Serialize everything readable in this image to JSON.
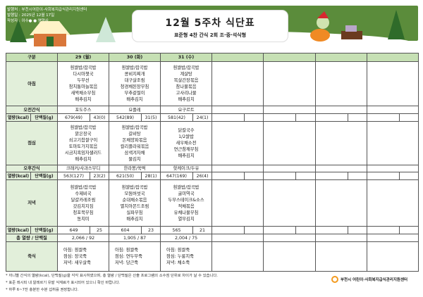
{
  "header": {
    "publisher": "발행처 : 부천시어린이·사회복지급식관리지원센터",
    "date": "발행일 : 2025년 12월 17일",
    "author": "작성자 : 이수● ● 영양사",
    "title": "12월 5주차 식단표",
    "subtitle": "표준형 4찬 간식 2회 조·중·석식형"
  },
  "table": {
    "corner": "구분",
    "days": [
      "29 (월)",
      "30 (화)",
      "31 (수)",
      "",
      "",
      "",
      ""
    ],
    "rows": {
      "breakfast": "아침",
      "am_snack": "오전간식",
      "kcal": "열량(kcal)",
      "protein": "단백질(g)",
      "lunch": "점심",
      "pm_snack": "오후간식",
      "dinner": "저녁",
      "total": "총 열량 / 단백질",
      "porridge": "죽식"
    },
    "breakfast": [
      [
        "흰쌀밥/잡곡밥",
        "다시마챗국",
        "두부선",
        "참치통마늘볶음",
        "새싹채소무침",
        "배추김치"
      ],
      [
        "흰쌀밥/잡곡밥",
        "콩비지찌개",
        "대구살조림",
        "청경채된장무침",
        "부추겉절이",
        "배추김치"
      ],
      [
        "흰쌀밥/잡곡밥",
        "계살탕",
        "목살간장볶음",
        "참나물볶음",
        "고사리나물",
        "배추김치"
      ]
    ],
    "am_snack": [
      "포도주스",
      "요플레",
      "요구르트"
    ],
    "am_nutrition": [
      [
        "679(49)",
        "43(0)"
      ],
      [
        "542(89)",
        "31(5)"
      ],
      [
        "581(42)",
        "24(1)"
      ]
    ],
    "lunch": [
      [
        "흰쌀밥/잡곡밥",
        "맑은장국",
        "쇠고기찹쌀구이",
        "토마토가지볶음",
        "시금치흑임자샐러드",
        "배추김치"
      ],
      [
        "흰쌀밥/잡곡밥",
        "갈비탕",
        "돈채양파볶음",
        "컬리플라워볶음",
        "삼색겨자채",
        "물김치"
      ],
      [
        "닭칼국수",
        "1/2쌀밥",
        "새우채소전",
        "연근참깨무침",
        "배추김치"
      ]
    ],
    "pm_snack": [
      "크래커/사과스무디",
      "한라봉/쑥떡",
      "핫케이크/두유"
    ],
    "pm_nutrition": [
      [
        "563(127)",
        "23(2)"
      ],
      [
        "621(50)",
        "28(1)"
      ],
      [
        "647(169)",
        "26(4)"
      ]
    ],
    "dinner": [
      [
        "흰쌀밥/잡곡밥",
        "수제비국",
        "달걀카레조림",
        "갓김치지짐",
        "청포묵무침",
        "동치미"
      ],
      [
        "흰쌀밥/잡곡밥",
        "모둠버섯국",
        "순대채소볶음",
        "멸치아몬드조림",
        "실파무침",
        "배추김치"
      ],
      [
        "흰쌀밥/잡곡밥",
        "굴미역국",
        "두부스테이크&소스",
        "적채볶음",
        "유채나물무침",
        "열무김치"
      ]
    ],
    "dinner_nutrition": [
      [
        "649",
        "25"
      ],
      [
        "604",
        "23"
      ],
      [
        "565",
        "21"
      ]
    ],
    "totals": [
      "2,066  /  92",
      "1,905  /  87",
      "2,004  /  75"
    ],
    "porridge": [
      [
        "아침: 흰쌀죽",
        "점심: 장국죽",
        "저녁: 새우살죽"
      ],
      [
        "아침: 흰쌀죽",
        "점심: 연두부죽",
        "저녁: 당근죽"
      ],
      [
        "아침: 흰쌀죽",
        "점심: 누룽지죽",
        "저녁: 채소죽"
      ]
    ]
  },
  "notes": [
    "* 끼니별 간식의 열량(kcal), 단백질(g)을 각각 표시하였으며, 총 열량 / 단백질은 산출 프로그램의 소수점 단위로 차이가 날 수 있습니다.",
    "* 표준 레시피 내 알레르기 유발 식재료가 표시되어 있으니 확인 바랍니다.",
    "* 하루 6~7잔 충분한 수분 섭취를 권장합니다."
  ],
  "logo": "부천시 어린이·사회복지급식관리지원센터",
  "colors": {
    "banner": "#5b8c3b",
    "header": "#c6e0b4",
    "label": "#e2efda",
    "logo": "#f39a1f"
  }
}
